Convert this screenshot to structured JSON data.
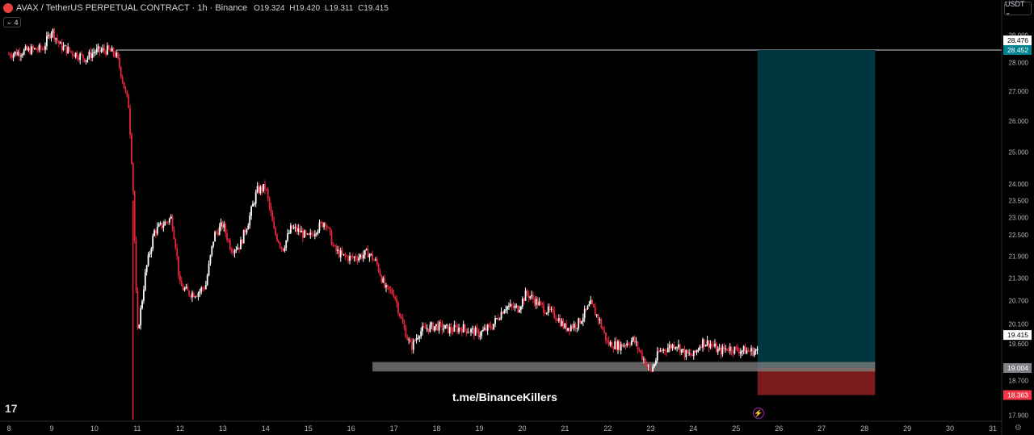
{
  "header": {
    "symbol": "AVAX / TetherUS PERPETUAL CONTRACT · 1h · Binance",
    "ohlc": [
      {
        "key": "O",
        "value": "19.324"
      },
      {
        "key": "H",
        "value": "19.420"
      },
      {
        "key": "L",
        "value": "19.311"
      },
      {
        "key": "C",
        "value": "19.415"
      }
    ],
    "indicator_count": "4"
  },
  "currency_button": "USDT ⌄",
  "watermark": "t.me/BinanceKillers",
  "tv_logo": "17",
  "colors": {
    "background": "#000000",
    "up_candle": "#ffffff",
    "down_candle": "#e8263b",
    "target_zone": "#00363d",
    "stop_zone": "#7a1c1c",
    "support_zone": "#808080"
  },
  "chart_data": {
    "type": "candlestick",
    "instrument": "AVAX / TetherUS PERPETUAL CONTRACT",
    "timeframe": "1h",
    "x_ticks": [
      "8",
      "9",
      "10",
      "11",
      "12",
      "13",
      "14",
      "15",
      "16",
      "17",
      "18",
      "19",
      "20",
      "21",
      "22",
      "23",
      "24",
      "25",
      "26",
      "27",
      "28",
      "29",
      "30",
      "31"
    ],
    "y_ticks": [
      "29.000",
      "28.000",
      "27.000",
      "26.000",
      "25.000",
      "24.000",
      "23.500",
      "23.000",
      "22.500",
      "21.900",
      "21.300",
      "20.700",
      "20.100",
      "19.600",
      "18.700",
      "17.900"
    ],
    "price_labels": {
      "top_line": "28.476",
      "target": "28.452",
      "current": "19.415",
      "entry": "19.004",
      "stop": "18.363"
    },
    "levels": {
      "horizontal_line": 28.452
    },
    "position": {
      "side": "long",
      "entry": 19.004,
      "target": 28.452,
      "stop": 18.363,
      "start_day": 25.5,
      "end_day": 28.25
    },
    "support_zone": {
      "low": 18.92,
      "high": 19.15,
      "start_day": 16.5,
      "end_day": 28.25
    },
    "close_path": [
      [
        8.0,
        28.3
      ],
      [
        8.5,
        28.45
      ],
      [
        8.8,
        28.5
      ],
      [
        9.0,
        29.2
      ],
      [
        9.2,
        28.6
      ],
      [
        9.5,
        28.35
      ],
      [
        9.8,
        28.15
      ],
      [
        10.0,
        28.4
      ],
      [
        10.3,
        28.45
      ],
      [
        10.5,
        28.3
      ],
      [
        10.6,
        27.8
      ],
      [
        10.7,
        27.1
      ],
      [
        10.8,
        26.5
      ],
      [
        10.9,
        24.0
      ],
      [
        11.0,
        19.8
      ],
      [
        11.1,
        20.6
      ],
      [
        11.2,
        21.5
      ],
      [
        11.4,
        22.6
      ],
      [
        11.6,
        22.8
      ],
      [
        11.8,
        23.0
      ],
      [
        11.9,
        22.2
      ],
      [
        12.0,
        21.1
      ],
      [
        12.2,
        20.9
      ],
      [
        12.4,
        20.9
      ],
      [
        12.6,
        21.1
      ],
      [
        12.8,
        22.5
      ],
      [
        13.0,
        22.8
      ],
      [
        13.2,
        22.1
      ],
      [
        13.4,
        22.2
      ],
      [
        13.6,
        22.9
      ],
      [
        13.8,
        23.8
      ],
      [
        14.0,
        23.9
      ],
      [
        14.2,
        22.6
      ],
      [
        14.4,
        22.1
      ],
      [
        14.6,
        22.7
      ],
      [
        14.8,
        22.6
      ],
      [
        15.0,
        22.4
      ],
      [
        15.2,
        22.7
      ],
      [
        15.4,
        22.9
      ],
      [
        15.6,
        22.1
      ],
      [
        15.8,
        21.9
      ],
      [
        16.0,
        21.85
      ],
      [
        16.2,
        21.9
      ],
      [
        16.4,
        22.0
      ],
      [
        16.6,
        21.7
      ],
      [
        16.8,
        21.0
      ],
      [
        17.0,
        20.9
      ],
      [
        17.2,
        20.1
      ],
      [
        17.4,
        19.5
      ],
      [
        17.6,
        19.9
      ],
      [
        17.8,
        20.0
      ],
      [
        18.0,
        20.05
      ],
      [
        18.3,
        19.95
      ],
      [
        18.6,
        20.0
      ],
      [
        19.0,
        19.85
      ],
      [
        19.3,
        20.05
      ],
      [
        19.6,
        20.55
      ],
      [
        19.9,
        20.5
      ],
      [
        20.1,
        20.9
      ],
      [
        20.3,
        20.7
      ],
      [
        20.5,
        20.5
      ],
      [
        20.8,
        20.3
      ],
      [
        21.0,
        20.0
      ],
      [
        21.3,
        20.1
      ],
      [
        21.6,
        20.6
      ],
      [
        21.8,
        20.2
      ],
      [
        22.0,
        19.6
      ],
      [
        22.3,
        19.55
      ],
      [
        22.6,
        19.7
      ],
      [
        22.8,
        19.3
      ],
      [
        23.0,
        18.9
      ],
      [
        23.2,
        19.4
      ],
      [
        23.4,
        19.5
      ],
      [
        23.6,
        19.6
      ],
      [
        23.8,
        19.35
      ],
      [
        24.0,
        19.3
      ],
      [
        24.2,
        19.65
      ],
      [
        24.4,
        19.6
      ],
      [
        24.6,
        19.4
      ],
      [
        24.8,
        19.5
      ],
      [
        25.0,
        19.45
      ],
      [
        25.3,
        19.42
      ],
      [
        25.5,
        19.415
      ]
    ],
    "x_domain": [
      7.95,
      31.15
    ],
    "y_scale": "log"
  }
}
